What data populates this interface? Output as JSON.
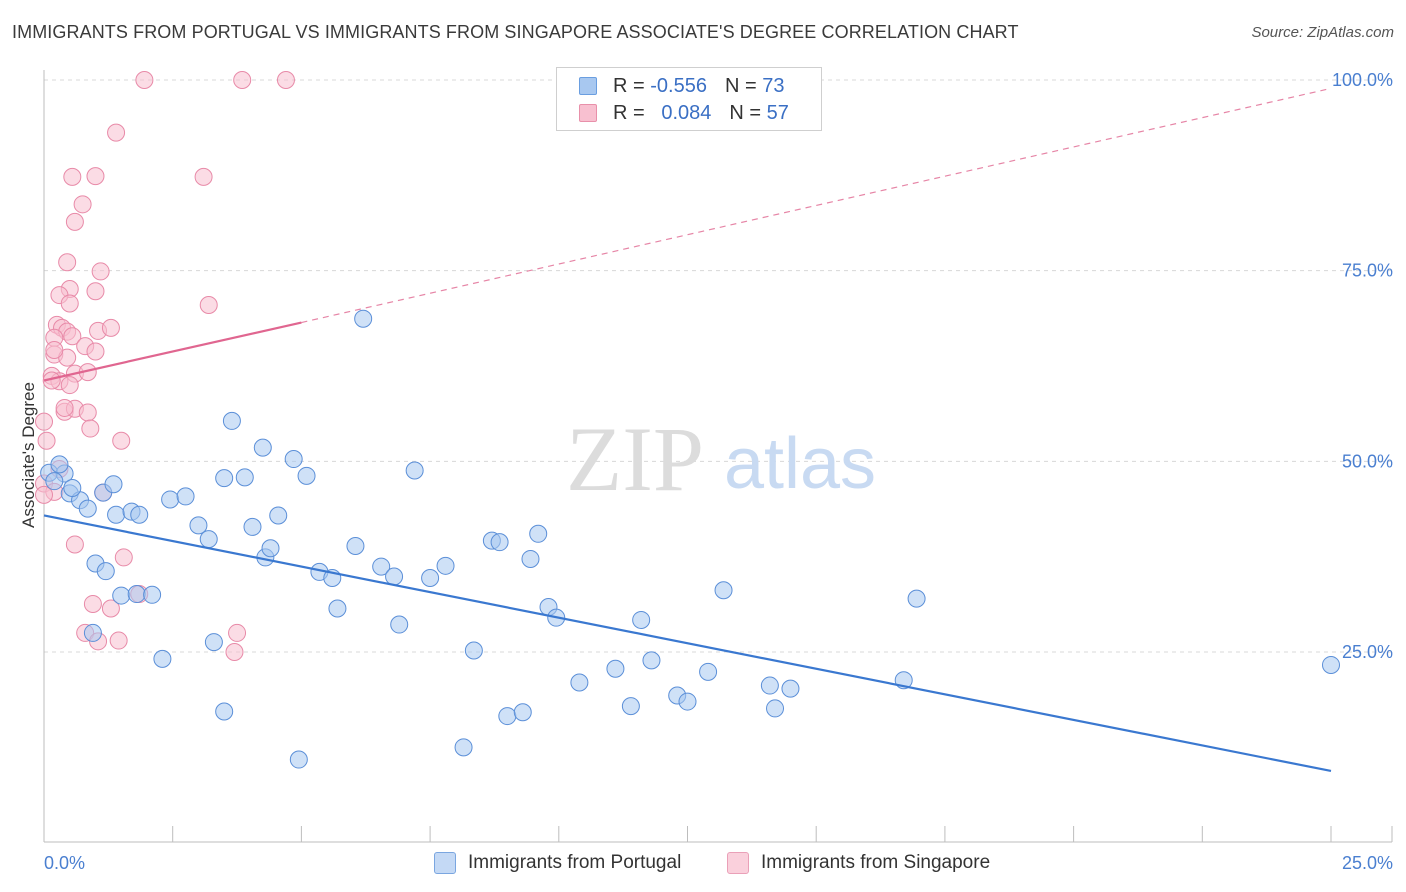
{
  "title": "IMMIGRANTS FROM PORTUGAL VS IMMIGRANTS FROM SINGAPORE ASSOCIATE'S DEGREE CORRELATION CHART",
  "source": "Source: ZipAtlas.com",
  "watermark": {
    "zip": "ZIP",
    "atlas": "atlas"
  },
  "legend": {
    "rows": [
      {
        "r_label": "R =",
        "r_value": "-0.556",
        "n_label": "N =",
        "n_value": "73",
        "color": "#a8c8f0",
        "border": "#6a9ee0"
      },
      {
        "r_label": "R =",
        "r_value": "0.084",
        "n_label": "N =",
        "n_value": "57",
        "color": "#f8c0d0",
        "border": "#e890aa"
      }
    ]
  },
  "bottom_legend": [
    {
      "label": "Immigrants from Portugal",
      "color": "#c4d9f5",
      "border": "#7aa6e0"
    },
    {
      "label": "Immigrants from Singapore",
      "color": "#fad0dc",
      "border": "#eaa0b8"
    }
  ],
  "chart_data": {
    "type": "scatter",
    "title": "IMMIGRANTS FROM PORTUGAL VS IMMIGRANTS FROM SINGAPORE ASSOCIATE'S DEGREE CORRELATION CHART",
    "xlabel": "",
    "ylabel": "Associate's Degree",
    "xlim": [
      0,
      25
    ],
    "ylim": [
      0,
      105
    ],
    "x_tick_labels": [
      "0.0%",
      "25.0%"
    ],
    "y_ticks": [
      25,
      50,
      75,
      100
    ],
    "y_tick_labels": [
      "25.0%",
      "50.0%",
      "75.0%",
      "100.0%"
    ],
    "grid": true,
    "legend_position": "top-center",
    "series": [
      {
        "name": "Immigrants from Portugal",
        "color": "#a8c8f0",
        "stroke": "#5b8fd8",
        "trend": {
          "x": [
            0,
            25
          ],
          "y": [
            42.9,
            9.4
          ],
          "color": "#3a78d0"
        },
        "points": [
          [
            0.1,
            48.5
          ],
          [
            0.4,
            48.4
          ],
          [
            0.2,
            47.4
          ],
          [
            0.5,
            45.8
          ],
          [
            0.7,
            44.9
          ],
          [
            0.85,
            43.8
          ],
          [
            1.15,
            45.9
          ],
          [
            1.4,
            43.0
          ],
          [
            1.7,
            43.4
          ],
          [
            1.85,
            43.0
          ],
          [
            2.45,
            45.0
          ],
          [
            2.75,
            45.4
          ],
          [
            3.0,
            41.6
          ],
          [
            3.2,
            39.8
          ],
          [
            3.5,
            47.8
          ],
          [
            3.65,
            55.3
          ],
          [
            3.9,
            47.9
          ],
          [
            4.05,
            41.4
          ],
          [
            4.25,
            51.8
          ],
          [
            4.3,
            37.4
          ],
          [
            4.4,
            38.6
          ],
          [
            4.55,
            42.9
          ],
          [
            4.85,
            50.3
          ],
          [
            5.1,
            48.1
          ],
          [
            5.35,
            35.5
          ],
          [
            5.6,
            34.7
          ],
          [
            6.05,
            38.9
          ],
          [
            6.2,
            68.7
          ],
          [
            6.55,
            36.2
          ],
          [
            6.8,
            34.9
          ],
          [
            6.9,
            28.6
          ],
          [
            7.2,
            48.8
          ],
          [
            7.5,
            34.7
          ],
          [
            7.8,
            36.3
          ],
          [
            8.15,
            12.5
          ],
          [
            8.35,
            25.2
          ],
          [
            8.7,
            39.6
          ],
          [
            8.85,
            39.4
          ],
          [
            9.0,
            16.6
          ],
          [
            9.3,
            17.1
          ],
          [
            9.45,
            37.2
          ],
          [
            9.6,
            40.5
          ],
          [
            9.8,
            30.9
          ],
          [
            9.95,
            29.5
          ],
          [
            10.4,
            21.0
          ],
          [
            11.1,
            22.8
          ],
          [
            11.4,
            17.9
          ],
          [
            11.6,
            29.2
          ],
          [
            11.8,
            23.9
          ],
          [
            12.3,
            19.3
          ],
          [
            12.5,
            18.5
          ],
          [
            12.9,
            22.4
          ],
          [
            13.2,
            33.1
          ],
          [
            14.1,
            20.6
          ],
          [
            14.2,
            17.6
          ],
          [
            14.5,
            20.2
          ],
          [
            16.7,
            21.3
          ],
          [
            16.95,
            32.0
          ],
          [
            25.0,
            23.3
          ],
          [
            1.0,
            36.6
          ],
          [
            1.2,
            35.6
          ],
          [
            0.95,
            27.5
          ],
          [
            1.5,
            32.4
          ],
          [
            1.8,
            32.6
          ],
          [
            2.1,
            32.5
          ],
          [
            2.3,
            24.1
          ],
          [
            3.3,
            26.3
          ],
          [
            3.5,
            17.2
          ],
          [
            5.7,
            30.7
          ],
          [
            4.95,
            10.9
          ],
          [
            0.3,
            49.6
          ],
          [
            0.55,
            46.5
          ],
          [
            1.35,
            47.0
          ]
        ]
      },
      {
        "name": "Immigrants from Singapore",
        "color": "#f8c0d0",
        "stroke": "#e88aa8",
        "trend": {
          "x": [
            0,
            5
          ],
          "y": [
            60.6,
            68.2
          ],
          "color": "#e06690",
          "dashed_to": [
            25,
            98.9
          ]
        },
        "points": [
          [
            1.95,
            100.0
          ],
          [
            3.85,
            100.0
          ],
          [
            4.7,
            100.0
          ],
          [
            1.4,
            93.1
          ],
          [
            0.55,
            87.3
          ],
          [
            1.0,
            87.4
          ],
          [
            3.1,
            87.3
          ],
          [
            0.75,
            83.7
          ],
          [
            0.6,
            81.4
          ],
          [
            0.45,
            76.1
          ],
          [
            1.1,
            74.9
          ],
          [
            0.5,
            72.6
          ],
          [
            1.0,
            72.3
          ],
          [
            0.3,
            71.8
          ],
          [
            0.5,
            70.7
          ],
          [
            3.2,
            70.5
          ],
          [
            0.25,
            67.9
          ],
          [
            0.35,
            67.5
          ],
          [
            0.45,
            67.0
          ],
          [
            1.05,
            67.1
          ],
          [
            1.3,
            67.5
          ],
          [
            0.2,
            66.2
          ],
          [
            0.55,
            66.4
          ],
          [
            0.8,
            65.1
          ],
          [
            1.0,
            64.4
          ],
          [
            0.2,
            64.0
          ],
          [
            0.45,
            63.6
          ],
          [
            0.6,
            61.5
          ],
          [
            0.85,
            61.7
          ],
          [
            0.15,
            61.2
          ],
          [
            0.3,
            60.5
          ],
          [
            0.15,
            60.6
          ],
          [
            0.5,
            60.0
          ],
          [
            0.4,
            56.5
          ],
          [
            0.6,
            56.9
          ],
          [
            0.85,
            56.4
          ],
          [
            0.0,
            55.2
          ],
          [
            0.9,
            54.3
          ],
          [
            0.05,
            52.7
          ],
          [
            1.5,
            52.7
          ],
          [
            0.0,
            47.1
          ],
          [
            0.2,
            46.0
          ],
          [
            1.15,
            45.9
          ],
          [
            0.6,
            39.1
          ],
          [
            1.55,
            37.4
          ],
          [
            0.95,
            31.3
          ],
          [
            1.3,
            30.7
          ],
          [
            1.85,
            32.6
          ],
          [
            0.8,
            27.5
          ],
          [
            1.05,
            26.4
          ],
          [
            1.45,
            26.5
          ],
          [
            3.75,
            27.5
          ],
          [
            3.7,
            25.0
          ],
          [
            0.0,
            45.6
          ],
          [
            0.3,
            49.0
          ],
          [
            0.4,
            57.0
          ],
          [
            0.2,
            64.6
          ]
        ]
      }
    ]
  }
}
